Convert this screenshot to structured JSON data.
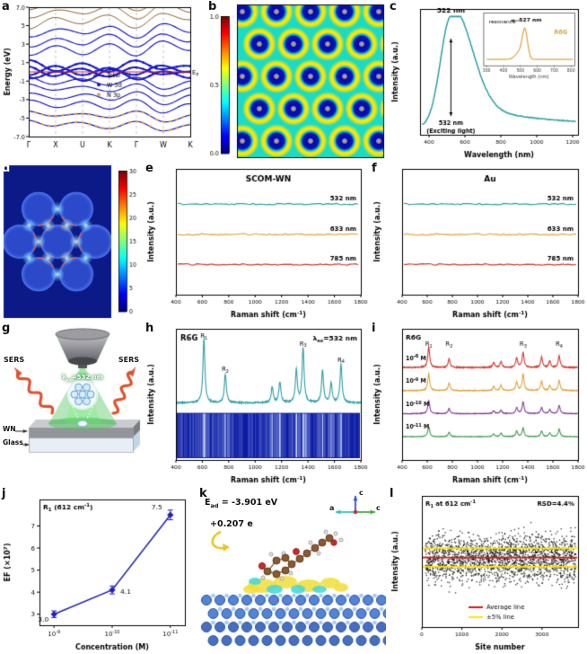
{
  "letters": {
    "a": "a",
    "b": "b",
    "c": "c",
    "d": "d",
    "e": "e",
    "f": "f",
    "g": "g",
    "h": "h",
    "i": "i",
    "j": "j",
    "k": "k",
    "l": "l"
  },
  "colors": {
    "teal": "#2e9ea6",
    "orange": "#e2a33c",
    "red": "#d23a30",
    "purple": "#8a3f9e",
    "green": "#3f9e4f",
    "navy": "#2222b8",
    "blue": "#1616cc",
    "brown": "#8a5a28",
    "fermi": "#cc2222",
    "barcode_bg": "#0a1aa4"
  },
  "schematic_g": {
    "laser": "λ_{ex}=532 nm",
    "sers_left": "SERS",
    "sers_right": "SERS",
    "wn": "WN",
    "glass": "Glass"
  },
  "structure_k": {
    "ead": "E_{ad} = -3.901 eV",
    "charge": "+0.207 e",
    "axis_up": "c",
    "axis_left": "a",
    "axis_right": "c"
  },
  "chart_data": [
    {
      "id": "a",
      "type": "line",
      "subtype": "band",
      "ylabel": "Energy (eV)",
      "ylim": [
        -7,
        7
      ],
      "yticks": [
        {
          "v": 7,
          "l": "7.0"
        },
        {
          "v": 5,
          "l": "5"
        },
        {
          "v": 3,
          "l": "3"
        },
        {
          "v": 1,
          "l": "1"
        },
        {
          "v": -1,
          "l": "-1"
        },
        {
          "v": -3,
          "l": "-3"
        },
        {
          "v": -5,
          "l": "-5"
        },
        {
          "v": -7,
          "l": "-7.0"
        }
      ],
      "kpoints": [
        "Γ",
        "X",
        "U",
        "K",
        "Γ",
        "W",
        "K"
      ],
      "fermi_label": "E_{F}",
      "legend": [
        {
          "label": "Total",
          "marker": "line",
          "color": "blue"
        },
        {
          "label": "W 5d",
          "marker": "dot",
          "color": "blue"
        },
        {
          "label": "N 3p",
          "marker": "dot",
          "color": "orange"
        }
      ],
      "bands": [
        {
          "e": [
            -0.5,
            -1.3,
            -0.7,
            -1.6,
            -0.5,
            -1.9,
            -0.9
          ],
          "color": "blue",
          "lw": 1.2
        },
        {
          "e": [
            -1.2,
            -2.0,
            -1.5,
            -2.3,
            -1.2,
            -2.6,
            -1.7
          ],
          "color": "blue",
          "lw": 1.2
        },
        {
          "e": [
            -2.2,
            -2.9,
            -2.4,
            -3.1,
            -2.2,
            -3.4,
            -2.6
          ],
          "color": "blue",
          "lw": 1.2
        },
        {
          "e": [
            -3.1,
            -3.7,
            -3.3,
            -4.0,
            -3.1,
            -4.3,
            -3.5
          ],
          "color": "blue",
          "lw": 1.2
        },
        {
          "e": [
            -4.2,
            -4.8,
            -4.4,
            -5.1,
            -4.2,
            -5.4,
            -4.6
          ],
          "color": "blue",
          "lw": 1.2,
          "dots": "orange"
        },
        {
          "e": [
            -5.2,
            -5.9,
            -5.5,
            -6.2,
            -5.2,
            -6.5,
            -5.7
          ],
          "color": "blue",
          "lw": 1.2,
          "dots": "orange"
        },
        {
          "e": [
            0.6,
            -0.4,
            0.3,
            -0.6,
            0.6,
            -0.3,
            0.1
          ],
          "color": "blue",
          "lw": 2,
          "dots": "blue"
        },
        {
          "e": [
            -0.3,
            0.5,
            -0.2,
            0.4,
            -0.3,
            0.6,
            0.0
          ],
          "color": "blue",
          "lw": 2,
          "dots": "blue"
        },
        {
          "e": [
            1.1,
            0.2,
            0.9,
            0.1,
            1.1,
            0.3,
            0.7
          ],
          "color": "blue",
          "lw": 2,
          "dots": "blue"
        },
        {
          "e": [
            -0.8,
            0.1,
            -0.9,
            0.2,
            -0.8,
            0.0,
            -0.5
          ],
          "color": "blue",
          "lw": 2,
          "dots": "blue"
        },
        {
          "e": [
            1.8,
            2.7,
            2.0,
            3.0,
            1.8,
            3.2,
            2.4
          ],
          "color": "blue",
          "lw": 1.2
        },
        {
          "e": [
            2.8,
            3.6,
            3.0,
            3.9,
            2.8,
            4.1,
            3.3
          ],
          "color": "blue",
          "lw": 1.2
        },
        {
          "e": [
            3.8,
            4.6,
            4.1,
            4.9,
            3.8,
            5.1,
            4.3
          ],
          "color": "blue",
          "lw": 1.2
        },
        {
          "e": [
            4.8,
            5.8,
            5.2,
            6.1,
            4.8,
            6.4,
            5.5
          ],
          "color": "brown",
          "lw": 1
        },
        {
          "e": [
            5.8,
            6.8,
            6.2,
            7.1,
            5.8,
            7.4,
            6.5
          ],
          "color": "brown",
          "lw": 1
        },
        {
          "e": [
            6.6,
            7.6,
            7.0,
            7.8,
            6.6,
            8.0,
            7.2
          ],
          "color": "brown",
          "lw": 1
        }
      ]
    },
    {
      "id": "b",
      "type": "heatmap",
      "subtype": "hmapb",
      "colorbar": {
        "ticks": [
          "1.0",
          "0.5",
          "0.0"
        ],
        "range": [
          0,
          1
        ]
      }
    },
    {
      "id": "c",
      "type": "line",
      "subtype": "uvvis",
      "xlabel": "Wavelength (nm)",
      "ylabel": "Intensity (a.u.)",
      "xlim": [
        350,
        1230
      ],
      "xticks": [
        400,
        600,
        800,
        1000,
        1200
      ],
      "color": "teal",
      "peak_x": 522,
      "peak_label": "522 nm",
      "excitation_labels": [
        "532 nm",
        "(Exciting light)"
      ],
      "inset": {
        "label": "R6G",
        "color": "orange",
        "peak_x": 527,
        "peak_label": "527 nm",
        "annotation": "resonance",
        "xlabel": "Wavelength (nm)",
        "xlim": [
          280,
          820
        ],
        "xticks": [
          300,
          400,
          500,
          600,
          700,
          800
        ]
      }
    },
    {
      "id": "d",
      "type": "heatmap",
      "subtype": "hmapd",
      "colorbar": {
        "ticks": [
          "30",
          "25",
          "20",
          "15",
          "10",
          "5",
          "0"
        ],
        "range": [
          0,
          30
        ]
      }
    },
    {
      "id": "e",
      "type": "line",
      "subtype": "flat",
      "title": "SCOM-WN",
      "xlabel": "Raman shift (cm^{-1})",
      "ylabel": "Intensity (a.u.)",
      "xlim": [
        400,
        1800
      ],
      "xticks": [
        400,
        600,
        800,
        1000,
        1200,
        1400,
        1600,
        1800
      ],
      "lines": [
        {
          "label": "532 nm",
          "color": "teal",
          "level": 0.28
        },
        {
          "label": "633 nm",
          "color": "orange",
          "level": 0.52
        },
        {
          "label": "785 nm",
          "color": "red",
          "level": 0.76
        }
      ]
    },
    {
      "id": "f",
      "type": "line",
      "subtype": "flat",
      "title": "Au",
      "xlabel": "Raman shift (cm^{-1})",
      "ylabel": "Intensity (a.u.)",
      "xlim": [
        400,
        1800
      ],
      "xticks": [
        400,
        600,
        800,
        1000,
        1200,
        1400,
        1600,
        1800
      ],
      "lines": [
        {
          "label": "532 nm",
          "color": "teal",
          "level": 0.28
        },
        {
          "label": "633 nm",
          "color": "orange",
          "level": 0.52
        },
        {
          "label": "785 nm",
          "color": "red",
          "level": 0.76
        }
      ]
    },
    {
      "id": "h",
      "type": "line",
      "subtype": "raman",
      "title": "R6G",
      "note": "λ_{ex}=532 nm",
      "xlabel": "Raman shift (cm^{-1})",
      "ylabel": "Intensity (a.u.)",
      "xlim": [
        400,
        1800
      ],
      "xticks": [
        400,
        600,
        800,
        1000,
        1200,
        1400,
        1600,
        1800
      ],
      "color": "teal",
      "barcode": true,
      "peaks": [
        {
          "x": 612,
          "h": 1.0,
          "label": "R_{1}"
        },
        {
          "x": 774,
          "h": 0.45,
          "label": "R_{2}"
        },
        {
          "x": 1129,
          "h": 0.25
        },
        {
          "x": 1187,
          "h": 0.32
        },
        {
          "x": 1312,
          "h": 0.5
        },
        {
          "x": 1363,
          "h": 0.85,
          "label": "R_{3}"
        },
        {
          "x": 1510,
          "h": 0.5
        },
        {
          "x": 1575,
          "h": 0.3
        },
        {
          "x": 1650,
          "h": 0.6,
          "label": "R_{4}"
        }
      ]
    },
    {
      "id": "i",
      "type": "line",
      "subtype": "ramanmulti",
      "title": "R6G",
      "xlabel": "Raman shift (cm^{-1})",
      "ylabel": "Intensity (a.u.)",
      "xlim": [
        400,
        1800
      ],
      "xticks": [
        400,
        600,
        800,
        1000,
        1200,
        1400,
        1600,
        1800
      ],
      "peaks": [
        {
          "x": 612,
          "h": 1.0
        },
        {
          "x": 774,
          "h": 0.45
        },
        {
          "x": 1129,
          "h": 0.25
        },
        {
          "x": 1187,
          "h": 0.32
        },
        {
          "x": 1312,
          "h": 0.5
        },
        {
          "x": 1363,
          "h": 0.85
        },
        {
          "x": 1510,
          "h": 0.5
        },
        {
          "x": 1575,
          "h": 0.3
        },
        {
          "x": 1650,
          "h": 0.6
        }
      ],
      "peak_labels": [
        {
          "x": 612,
          "label": "R_{1}"
        },
        {
          "x": 774,
          "label": "R_{2}"
        },
        {
          "x": 1363,
          "label": "R_{3}"
        },
        {
          "x": 1650,
          "label": "R_{4}"
        }
      ],
      "series": [
        {
          "label": "10^{-8} M",
          "color": "red",
          "scale": 1.0
        },
        {
          "label": "10^{-9} M",
          "color": "orange",
          "scale": 0.8
        },
        {
          "label": "10^{-10} M",
          "color": "purple",
          "scale": 0.62
        },
        {
          "label": "10^{-11} M",
          "color": "green",
          "scale": 0.48
        }
      ]
    },
    {
      "id": "j",
      "type": "line",
      "subtype": "efplot",
      "title": "R_{1} (612 cm^{-1})",
      "xlabel": "Concentration (M)",
      "ylabel": "EF (×10^{7})",
      "xticklabels": [
        "10^{-9}",
        "10^{-10}",
        "10^{-11}"
      ],
      "values": [
        3.0,
        4.1,
        7.5
      ],
      "errors": [
        0.15,
        0.18,
        0.22
      ],
      "point_labels": [
        "3.0",
        "4.1",
        "7.5"
      ],
      "yticks": [
        3,
        4,
        5,
        6,
        7
      ],
      "ylim": [
        2.5,
        8.2
      ],
      "color": "navy"
    },
    {
      "id": "l",
      "type": "scatter",
      "subtype": "scatterl",
      "title": "R_{1} at 612 cm^{-1}",
      "note": "RSD=4.4%",
      "xlabel": "Site number",
      "ylabel": "Intensity (a.u.)",
      "xlim": [
        0,
        3900
      ],
      "xticks": [
        0,
        1000,
        2000,
        3000
      ],
      "n_points": 2000,
      "legend": [
        {
          "label": "Average line",
          "color": "#e01616"
        },
        {
          "label": "±5% line",
          "color": "#ffe400"
        }
      ]
    }
  ]
}
